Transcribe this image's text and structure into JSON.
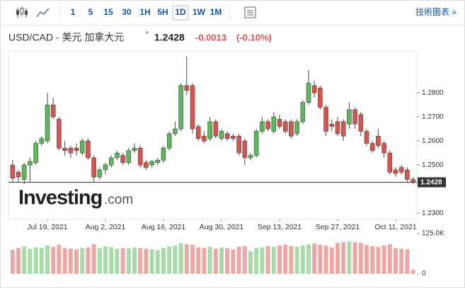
{
  "toolbar": {
    "intervals": [
      "1",
      "5",
      "15",
      "30",
      "1H",
      "5H",
      "1D",
      "1W",
      "1M"
    ],
    "selected": "1D",
    "link": "技術圖表 »"
  },
  "header": {
    "symbol": "USD/CAD - 美元 加拿大元",
    "marker": "*",
    "change": "-0.0013",
    "change_pct": "(-0.10%)"
  },
  "logo": {
    "brand": "Investing",
    "suffix": ".com"
  },
  "chart_data": {
    "type": "candlestick",
    "x": [
      "2021-07-09",
      "2021-07-12",
      "2021-07-13",
      "2021-07-14",
      "2021-07-15",
      "2021-07-16",
      "2021-07-19",
      "2021-07-20",
      "2021-07-21",
      "2021-07-22",
      "2021-07-23",
      "2021-07-26",
      "2021-07-27",
      "2021-07-28",
      "2021-07-29",
      "2021-07-30",
      "2021-08-02",
      "2021-08-03",
      "2021-08-04",
      "2021-08-05",
      "2021-08-06",
      "2021-08-09",
      "2021-08-10",
      "2021-08-11",
      "2021-08-12",
      "2021-08-13",
      "2021-08-16",
      "2021-08-17",
      "2021-08-18",
      "2021-08-19",
      "2021-08-20",
      "2021-08-23",
      "2021-08-24",
      "2021-08-25",
      "2021-08-26",
      "2021-08-27",
      "2021-08-30",
      "2021-08-31",
      "2021-09-01",
      "2021-09-02",
      "2021-09-03",
      "2021-09-06",
      "2021-09-07",
      "2021-09-08",
      "2021-09-09",
      "2021-09-10",
      "2021-09-13",
      "2021-09-14",
      "2021-09-15",
      "2021-09-16",
      "2021-09-17",
      "2021-09-20",
      "2021-09-21",
      "2021-09-22",
      "2021-09-23",
      "2021-09-24",
      "2021-09-27",
      "2021-09-28",
      "2021-09-29",
      "2021-09-30",
      "2021-10-01",
      "2021-10-04",
      "2021-10-05",
      "2021-10-06",
      "2021-10-07",
      "2021-10-08",
      "2021-10-11",
      "2021-10-12",
      "2021-10-13",
      "2021-10-14"
    ],
    "open": [
      1.25,
      1.247,
      1.244,
      1.25,
      1.251,
      1.259,
      1.26,
      1.275,
      1.269,
      1.257,
      1.257,
      1.257,
      1.255,
      1.26,
      1.253,
      1.245,
      1.248,
      1.25,
      1.253,
      1.254,
      1.251,
      1.256,
      1.257,
      1.251,
      1.25,
      1.251,
      1.252,
      1.257,
      1.263,
      1.265,
      1.283,
      1.283,
      1.266,
      1.262,
      1.261,
      1.268,
      1.261,
      1.263,
      1.262,
      1.262,
      1.26,
      1.253,
      1.254,
      1.264,
      1.268,
      1.264,
      1.269,
      1.268,
      1.268,
      1.263,
      1.268,
      1.276,
      1.283,
      1.282,
      1.274,
      1.267,
      1.268,
      1.268,
      1.267,
      1.273,
      1.271,
      1.264,
      1.259,
      1.262,
      1.259,
      1.255,
      1.248,
      1.249,
      1.248,
      1.244
    ],
    "high": [
      1.252,
      1.248,
      1.251,
      1.253,
      1.26,
      1.262,
      1.28,
      1.278,
      1.27,
      1.26,
      1.258,
      1.259,
      1.261,
      1.261,
      1.254,
      1.249,
      1.251,
      1.254,
      1.256,
      1.255,
      1.257,
      1.259,
      1.258,
      1.252,
      1.252,
      1.253,
      1.258,
      1.264,
      1.268,
      1.284,
      1.295,
      1.284,
      1.267,
      1.264,
      1.27,
      1.269,
      1.265,
      1.264,
      1.263,
      1.263,
      1.261,
      1.255,
      1.265,
      1.27,
      1.269,
      1.272,
      1.271,
      1.269,
      1.269,
      1.269,
      1.277,
      1.2895,
      1.285,
      1.283,
      1.275,
      1.269,
      1.27,
      1.269,
      1.276,
      1.274,
      1.272,
      1.265,
      1.26,
      1.265,
      1.26,
      1.256,
      1.249,
      1.25,
      1.249,
      1.245
    ],
    "low": [
      1.243,
      1.243,
      1.242,
      1.243,
      1.25,
      1.258,
      1.259,
      1.269,
      1.256,
      1.254,
      1.253,
      1.254,
      1.254,
      1.252,
      1.243,
      1.244,
      1.246,
      1.249,
      1.252,
      1.25,
      1.25,
      1.255,
      1.249,
      1.248,
      1.249,
      1.25,
      1.251,
      1.256,
      1.262,
      1.264,
      1.279,
      1.263,
      1.26,
      1.259,
      1.26,
      1.261,
      1.26,
      1.26,
      1.26,
      1.254,
      1.25,
      1.252,
      1.253,
      1.263,
      1.264,
      1.263,
      1.265,
      1.263,
      1.261,
      1.262,
      1.267,
      1.275,
      1.278,
      1.273,
      1.262,
      1.264,
      1.262,
      1.26,
      1.265,
      1.265,
      1.262,
      1.258,
      1.255,
      1.257,
      1.253,
      1.246,
      1.245,
      1.246,
      1.243,
      1.242
    ],
    "close": [
      1.2445,
      1.245,
      1.25,
      1.2515,
      1.259,
      1.261,
      1.275,
      1.27,
      1.257,
      1.256,
      1.255,
      1.256,
      1.26,
      1.253,
      1.245,
      1.248,
      1.25,
      1.253,
      1.255,
      1.251,
      1.256,
      1.257,
      1.25,
      1.249,
      1.2515,
      1.252,
      1.257,
      1.263,
      1.265,
      1.283,
      1.281,
      1.265,
      1.261,
      1.26,
      1.268,
      1.262,
      1.264,
      1.261,
      1.261,
      1.255,
      1.253,
      1.254,
      1.264,
      1.268,
      1.265,
      1.27,
      1.266,
      1.264,
      1.262,
      1.268,
      1.276,
      1.284,
      1.28,
      1.274,
      1.264,
      1.266,
      1.263,
      1.262,
      1.273,
      1.267,
      1.264,
      1.259,
      1.256,
      1.258,
      1.255,
      1.247,
      1.2465,
      1.247,
      1.244,
      1.2428
    ],
    "volume": [
      75000,
      80000,
      85000,
      78000,
      82000,
      80000,
      88000,
      84000,
      90000,
      80000,
      78000,
      76000,
      80000,
      82000,
      92000,
      80000,
      85000,
      82000,
      78000,
      80000,
      79000,
      82000,
      80000,
      78000,
      76000,
      74000,
      80000,
      85000,
      88000,
      95000,
      92000,
      90000,
      82000,
      80000,
      84000,
      78000,
      82000,
      80000,
      76000,
      84000,
      86000,
      70000,
      80000,
      82000,
      86000,
      84000,
      88000,
      90000,
      86000,
      84000,
      88000,
      92000,
      94000,
      90000,
      88000,
      82000,
      96000,
      98000,
      100000,
      98000,
      96000,
      90000,
      86000,
      84000,
      88000,
      92000,
      80000,
      78000,
      76000,
      12000
    ],
    "colors": {
      "up": "#5cb85c",
      "down": "#d9534f",
      "up_volume": "#a8dba9",
      "down_volume": "#eba8a6"
    },
    "ylim": [
      1.2274,
      1.2971
    ],
    "yticks": [
      {
        "value": 1.28,
        "label": "1.2800"
      },
      {
        "value": 1.27,
        "label": "1.2700"
      },
      {
        "value": 1.26,
        "label": "1.2600"
      },
      {
        "value": 1.25,
        "label": "1.2500"
      },
      {
        "value": 1.23,
        "label": "1.2300"
      }
    ],
    "last_price": 1.2428,
    "xticks": [
      {
        "value": "2021-07-19",
        "label": "Jul 19, 2021"
      },
      {
        "value": "2021-08-02",
        "label": "Aug 2, 2021"
      },
      {
        "value": "2021-08-16",
        "label": "Aug 16, 2021"
      },
      {
        "value": "2021-08-30",
        "label": "Aug 30, 2021"
      },
      {
        "value": "2021-09-13",
        "label": "Sep 13, 2021"
      },
      {
        "value": "2021-09-27",
        "label": "Sep 27, 2021"
      },
      {
        "value": "2021-10-11",
        "label": "Oct 11, 2021"
      }
    ],
    "volume_ylim": [
      0,
      125000
    ],
    "volume_ticks": [
      {
        "value": 125000,
        "label": "125.0K"
      },
      0
    ],
    "grid": false
  }
}
